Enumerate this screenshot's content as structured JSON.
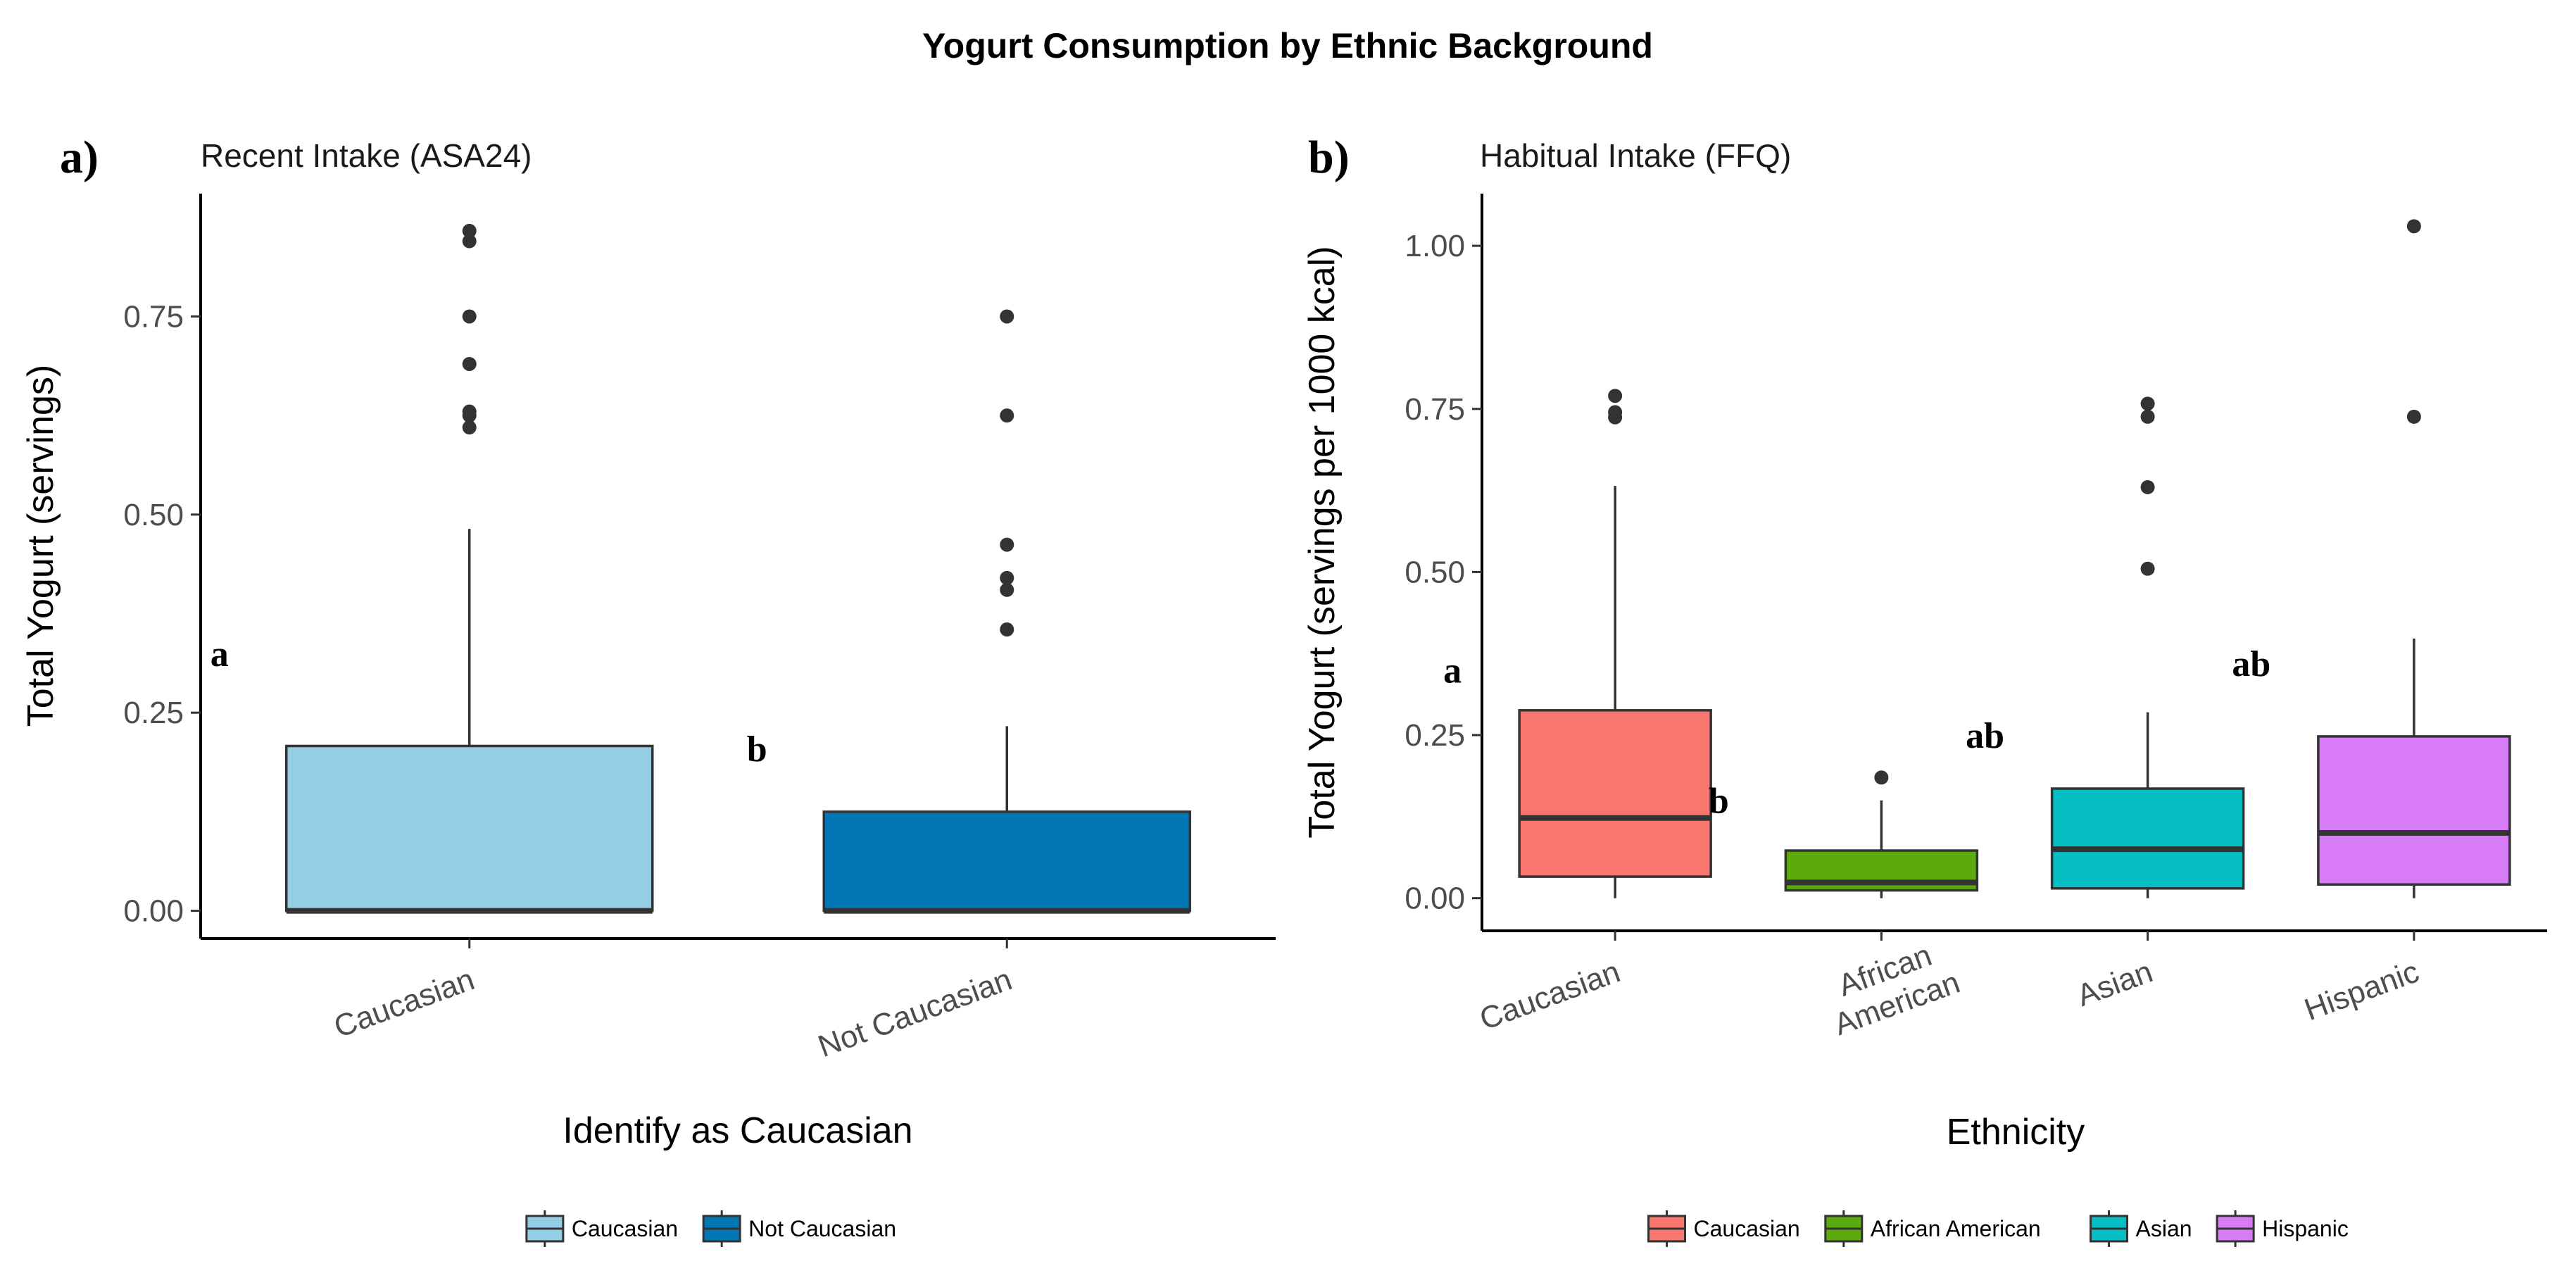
{
  "figure_title": "Yogurt Consumption by Ethnic Background",
  "chart_data": [
    {
      "panel_label": "a)",
      "type": "box",
      "title": "Recent Intake (ASA24)",
      "xlabel": "Identify as Caucasian",
      "ylabel": "Total Yogurt (servings)",
      "ylim": [
        -0.035,
        0.905
      ],
      "yticks": [
        0.0,
        0.25,
        0.5,
        0.75
      ],
      "ytick_labels": [
        "0.00",
        "0.25",
        "0.50",
        "0.75"
      ],
      "categories": [
        "Caucasian",
        "Not Caucasian"
      ],
      "boxes": [
        {
          "name": "Caucasian",
          "color": "#93CEE4",
          "q1": 0.0,
          "median": 0.0,
          "q3": 0.208,
          "whisker_low": 0.0,
          "whisker_high": 0.482,
          "outliers": [
            0.61,
            0.625,
            0.63,
            0.69,
            0.75,
            0.845,
            0.858
          ],
          "letter": "a",
          "letter_y": 0.325
        },
        {
          "name": "Not Caucasian",
          "color": "#0177B6",
          "q1": 0.0,
          "median": 0.0,
          "q3": 0.125,
          "whisker_low": 0.0,
          "whisker_high": 0.233,
          "outliers": [
            0.355,
            0.405,
            0.42,
            0.462,
            0.625,
            0.75
          ],
          "letter": "b",
          "letter_y": 0.205
        }
      ],
      "legend": {
        "placement": "bottom",
        "entries": [
          "Caucasian",
          "Not Caucasian"
        ]
      }
    },
    {
      "panel_label": "b)",
      "type": "box",
      "title": "Habitual Intake (FFQ)",
      "xlabel": "Ethnicity",
      "ylabel": "Total Yogurt (servings per 1000 kcal)",
      "ylim": [
        -0.05,
        1.08
      ],
      "yticks": [
        0.0,
        0.25,
        0.5,
        0.75,
        1.0
      ],
      "ytick_labels": [
        "0.00",
        "0.25",
        "0.50",
        "0.75",
        "1.00"
      ],
      "categories": [
        "Caucasian",
        "African American",
        "Asian",
        "Hispanic"
      ],
      "tick_label_lines": [
        [
          "Caucasian"
        ],
        [
          "African",
          "American"
        ],
        [
          "Asian"
        ],
        [
          "Hispanic"
        ]
      ],
      "boxes": [
        {
          "name": "Caucasian",
          "color": "#F8766D",
          "q1": 0.033,
          "median": 0.123,
          "q3": 0.288,
          "whisker_low": 0.0,
          "whisker_high": 0.632,
          "outliers": [
            0.737,
            0.745,
            0.77
          ],
          "letter": "a",
          "letter_y": 0.35
        },
        {
          "name": "African American",
          "color": "#5BAA0E",
          "q1": 0.012,
          "median": 0.024,
          "q3": 0.073,
          "whisker_low": 0.0,
          "whisker_high": 0.15,
          "outliers": [
            0.185
          ],
          "letter": "b",
          "letter_y": 0.15
        },
        {
          "name": "Asian",
          "color": "#05BFC4",
          "q1": 0.015,
          "median": 0.075,
          "q3": 0.168,
          "whisker_low": 0.0,
          "whisker_high": 0.285,
          "outliers": [
            0.505,
            0.63,
            0.738,
            0.758
          ],
          "letter": "ab",
          "letter_y": 0.25
        },
        {
          "name": "Hispanic",
          "color": "#D77BF6",
          "q1": 0.021,
          "median": 0.1,
          "q3": 0.248,
          "whisker_low": 0.0,
          "whisker_high": 0.398,
          "outliers": [
            0.738,
            1.03
          ],
          "letter": "ab",
          "letter_y": 0.36
        }
      ],
      "legend": {
        "placement": "bottom",
        "entries": [
          "Caucasian",
          "African American",
          "Asian",
          "Hispanic"
        ]
      }
    }
  ]
}
